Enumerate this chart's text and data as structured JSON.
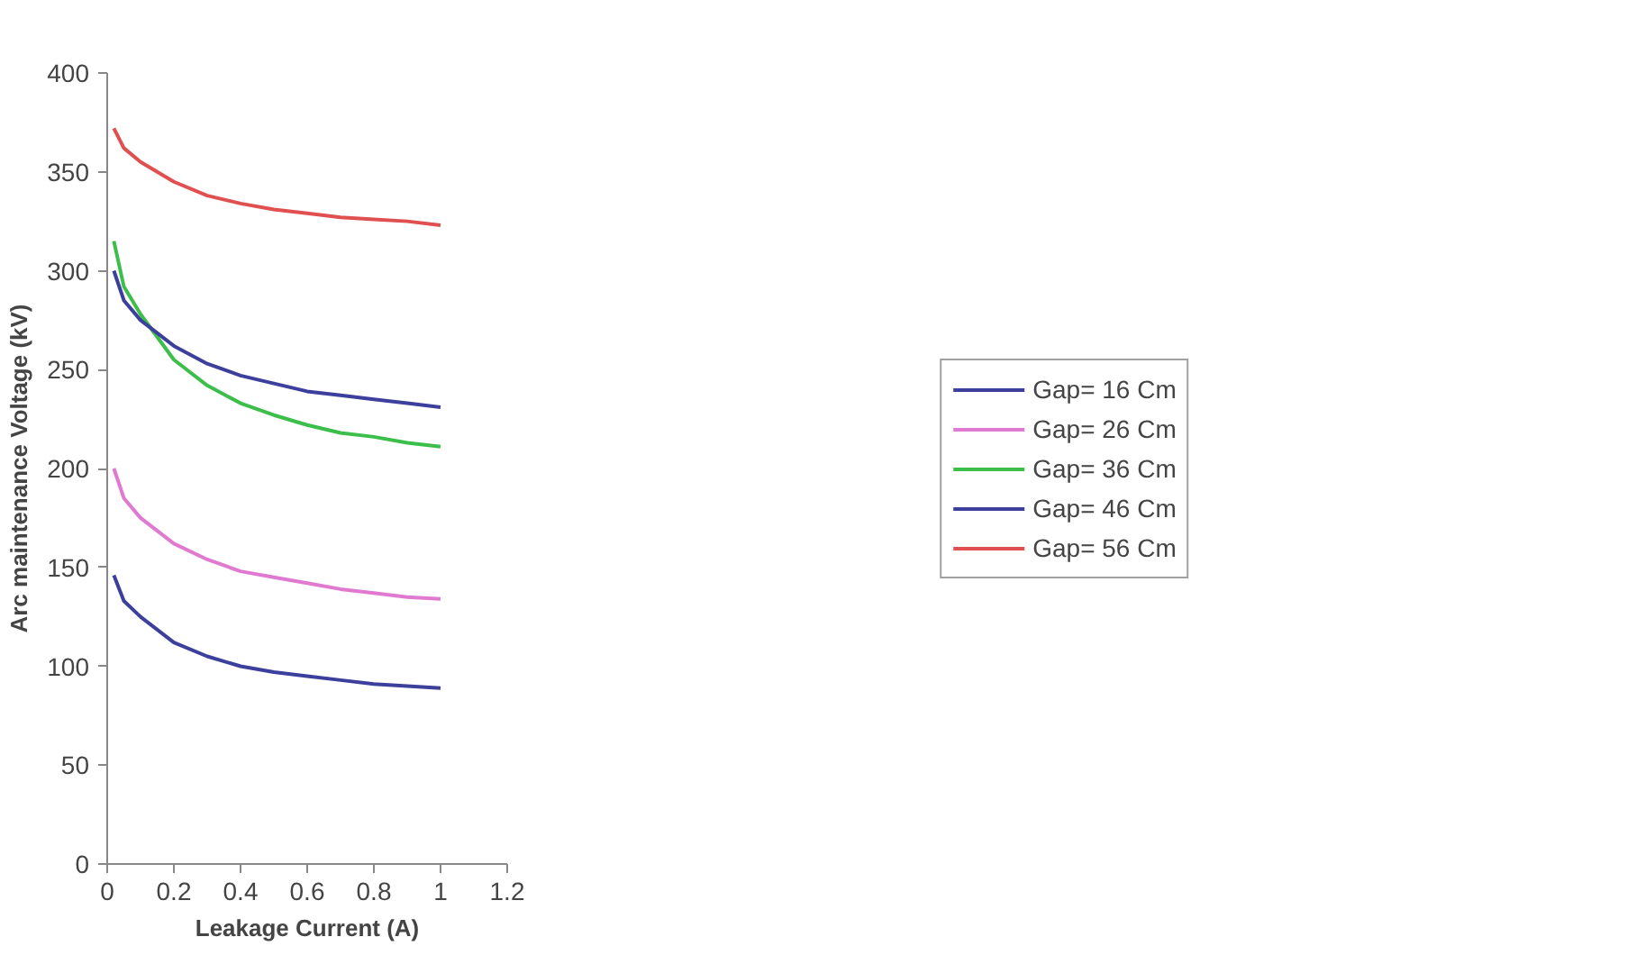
{
  "chart_data": {
    "type": "line",
    "xlabel": "Leakage Current (A)",
    "ylabel": "Arc maintenance Voltage (kV)",
    "x": [
      0.02,
      0.05,
      0.1,
      0.2,
      0.3,
      0.4,
      0.5,
      0.6,
      0.7,
      0.8,
      0.9,
      1.0
    ],
    "series": [
      {
        "name": "Gap= 16 Cm",
        "color": "#3c3f9c",
        "values": [
          146,
          133,
          125,
          112,
          105,
          100,
          97,
          95,
          93,
          91,
          90,
          89
        ]
      },
      {
        "name": "Gap= 26 Cm",
        "color": "#e07ad0",
        "values": [
          200,
          185,
          175,
          162,
          154,
          148,
          145,
          142,
          139,
          137,
          135,
          134
        ]
      },
      {
        "name": "Gap= 36 Cm",
        "color": "#3cbf4a",
        "values": [
          315,
          292,
          278,
          255,
          242,
          233,
          227,
          222,
          218,
          216,
          213,
          211
        ]
      },
      {
        "name": "Gap= 46 Cm",
        "color": "#3c3f9c",
        "values": [
          300,
          285,
          275,
          262,
          253,
          247,
          243,
          239,
          237,
          235,
          233,
          231
        ]
      },
      {
        "name": "Gap= 56 Cm",
        "color": "#e05050",
        "values": [
          372,
          362,
          355,
          345,
          338,
          334,
          331,
          329,
          327,
          326,
          325,
          323
        ]
      }
    ],
    "xlim": [
      0,
      1.2
    ],
    "xticks": [
      0,
      0.2,
      0.4,
      0.6,
      0.8,
      1,
      1.2
    ],
    "ylim": [
      0,
      400
    ],
    "yticks": [
      0,
      50,
      100,
      150,
      200,
      250,
      300,
      350,
      400
    ],
    "grid": false,
    "legend": "right",
    "marker": "none",
    "line_style": "solid"
  }
}
